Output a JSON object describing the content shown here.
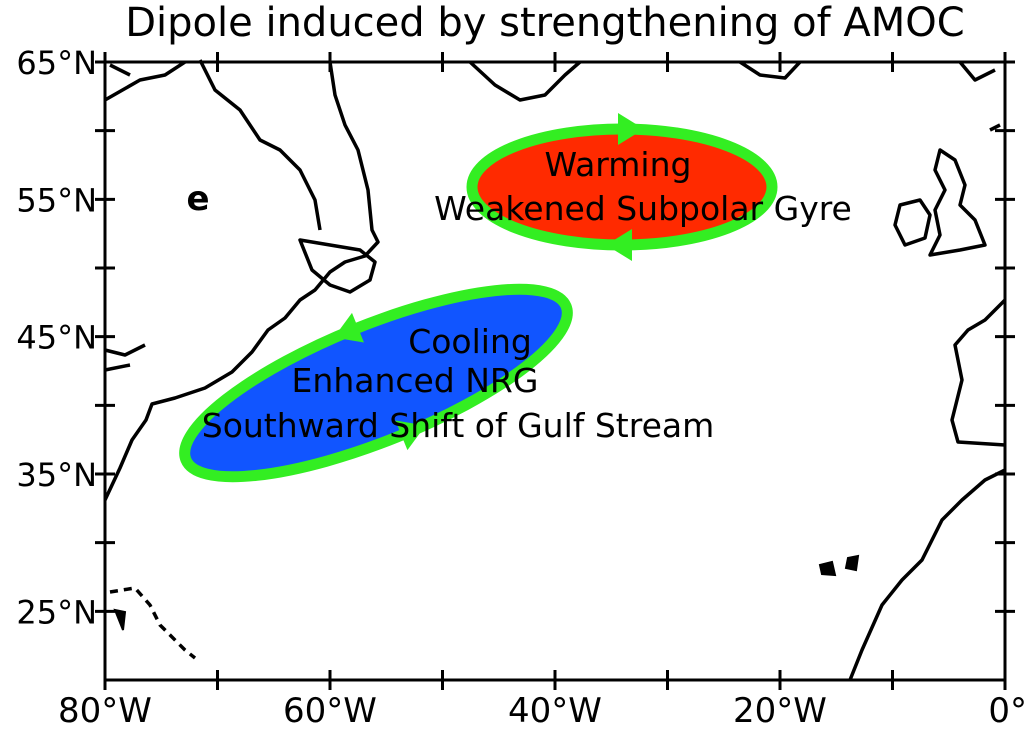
{
  "title": "Dipole induced by strengthening of AMOC",
  "panel_label": "e",
  "map": {
    "lonlim": [
      -80,
      0
    ],
    "latlim": [
      20,
      65
    ],
    "lat_ticks": [
      {
        "value": 65,
        "label": "65°N"
      },
      {
        "value": 55,
        "label": "55°N"
      },
      {
        "value": 45,
        "label": "45°N"
      },
      {
        "value": 35,
        "label": "35°N"
      },
      {
        "value": 25,
        "label": "25°N"
      }
    ],
    "lat_minor_ticks": [
      60,
      50,
      40,
      30
    ],
    "lon_ticks": [
      {
        "value": -80,
        "label": "80°W"
      },
      {
        "value": -60,
        "label": "60°W"
      },
      {
        "value": -40,
        "label": "40°W"
      },
      {
        "value": -20,
        "label": "20°W"
      },
      {
        "value": 0,
        "label": "0°"
      }
    ],
    "lon_minor_ticks": [
      -70,
      -50,
      -30,
      -10
    ]
  },
  "annotations": {
    "warming": {
      "lines": [
        "Warming",
        "Weakened Subpolar Gyre"
      ],
      "color": "#ff2a00",
      "ring": "#33ee22"
    },
    "cooling": {
      "lines": [
        "Cooling",
        "Enhanced NRG",
        "Southward Shift of Gulf Stream"
      ],
      "color": "#1155ff",
      "ring": "#33ee22"
    }
  }
}
